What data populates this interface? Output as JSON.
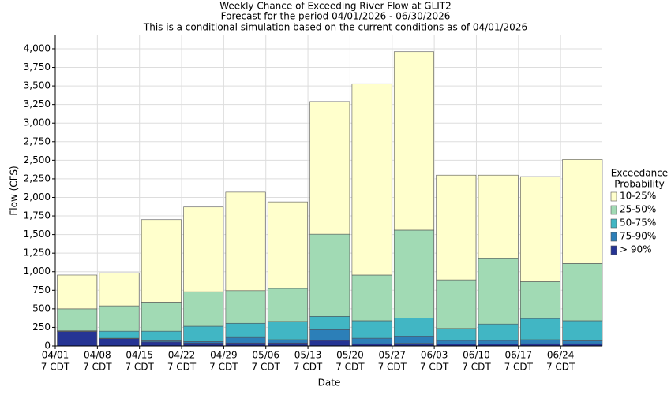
{
  "chart_data": {
    "type": "stacked_bar",
    "title": "Weekly Chance of Exceeding River Flow at GLIT2",
    "subtitle": "Forecast for the period 04/01/2026 - 06/30/2026",
    "note": "This is a conditional simulation based on the current conditions as of 04/01/2026",
    "xlabel": "Date",
    "ylabel": "Flow (CFS)",
    "categories": [
      "04/01",
      "04/08",
      "04/15",
      "04/22",
      "04/29",
      "05/06",
      "05/13",
      "05/20",
      "05/27",
      "06/03",
      "06/10",
      "06/17",
      "06/24"
    ],
    "category_sublabel": "7 CDT",
    "legend_title": [
      "Exceedance",
      "Probability"
    ],
    "series": [
      {
        "name": "> 90%",
        "color": "#253494",
        "values": [
          195,
          100,
          55,
          40,
          40,
          40,
          75,
          30,
          35,
          25,
          25,
          30,
          30
        ]
      },
      {
        "name": "75-90%",
        "color": "#2c7fb8",
        "values": [
          5,
          5,
          15,
          20,
          75,
          45,
          145,
          75,
          90,
          50,
          50,
          55,
          40
        ]
      },
      {
        "name": "50-75%",
        "color": "#41b6c4",
        "values": [
          5,
          95,
          130,
          205,
          190,
          245,
          180,
          235,
          250,
          160,
          220,
          285,
          270
        ]
      },
      {
        "name": "25-50%",
        "color": "#a1dab4",
        "values": [
          295,
          340,
          390,
          465,
          440,
          445,
          1105,
          615,
          1185,
          655,
          880,
          495,
          770
        ]
      },
      {
        "name": "10-25%",
        "color": "#ffffcc",
        "values": [
          455,
          445,
          1110,
          1140,
          1325,
          1165,
          1785,
          2575,
          2400,
          1410,
          1125,
          1415,
          1400
        ]
      }
    ],
    "ylim": [
      0,
      4180
    ],
    "yticks": [
      0,
      250,
      500,
      750,
      {
        "value": 1000,
        "label": "1,000"
      },
      {
        "value": 1250,
        "label": "1,250"
      },
      {
        "value": 1500,
        "label": "1,500"
      },
      {
        "value": 1750,
        "label": "1,750"
      },
      {
        "value": 2000,
        "label": "2,000"
      },
      {
        "value": 2250,
        "label": "2,250"
      },
      {
        "value": 2500,
        "label": "2,500"
      },
      {
        "value": 2750,
        "label": "2,750"
      },
      {
        "value": 3000,
        "label": "3,000"
      },
      {
        "value": 3250,
        "label": "3,250"
      },
      {
        "value": 3500,
        "label": "3,500"
      },
      {
        "value": 3750,
        "label": "3,750"
      },
      {
        "value": 4000,
        "label": "4,000"
      }
    ],
    "grid": true
  }
}
